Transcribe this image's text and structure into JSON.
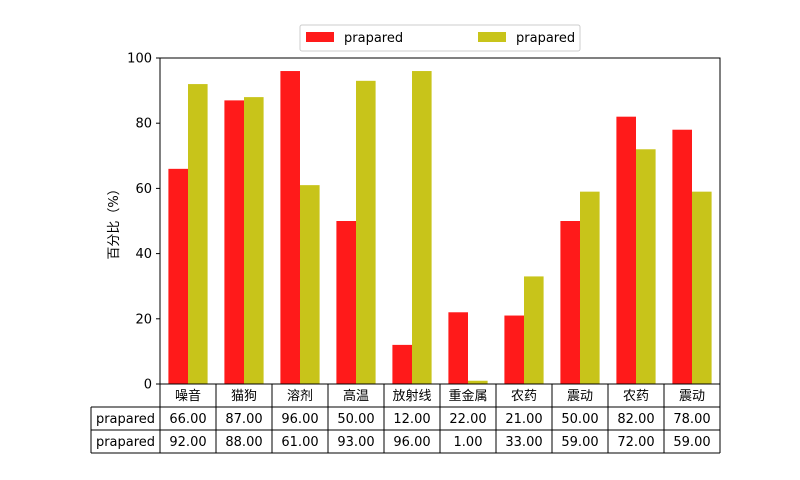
{
  "chart_data": {
    "type": "bar",
    "categories": [
      "噪音",
      "猫狗",
      "溶剂",
      "高温",
      "放射线",
      "重金属",
      "农药",
      "震动",
      "农药",
      "震动"
    ],
    "series": [
      {
        "name": "prapared",
        "color": "#ff1a1a",
        "values": [
          66,
          87,
          96,
          50,
          12,
          22,
          21,
          50,
          82,
          78
        ],
        "table_values": [
          "66.00",
          "87.00",
          "96.00",
          "50.00",
          "12.00",
          "22.00",
          "21.00",
          "50.00",
          "82.00",
          "78.00"
        ]
      },
      {
        "name": "prapared",
        "color": "#c8c41a",
        "values": [
          92,
          88,
          61,
          93,
          96,
          1,
          33,
          59,
          72,
          59
        ],
        "table_values": [
          "92.00",
          "88.00",
          "61.00",
          "93.00",
          "96.00",
          "1.00",
          "33.00",
          "59.00",
          "72.00",
          "59.00"
        ]
      }
    ],
    "ylabel": "百分比（%）",
    "ylim": [
      0,
      100
    ],
    "yticks": [
      "0",
      "20",
      "40",
      "60",
      "80",
      "100"
    ],
    "grid": false,
    "legend_position": "top-center",
    "data_table": true
  }
}
